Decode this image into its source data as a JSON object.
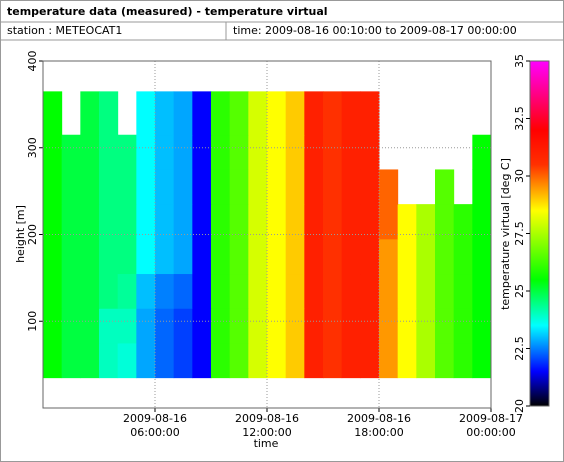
{
  "header": {
    "title": "temperature data (measured) - temperature virtual",
    "station": "station : METEOCAT1",
    "time": "time: 2009-08-16 00:10:00 to 2009-08-17 00:00:00"
  },
  "chart_data": {
    "type": "heatmap",
    "x_label": "time",
    "y_label": "height [m]",
    "colorbar_label": "temperature virtual [deg C]",
    "x_bins": [
      "2009-08-16 00:00:00",
      "2009-08-16 01:00:00",
      "2009-08-16 02:00:00",
      "2009-08-16 03:00:00",
      "2009-08-16 04:00:00",
      "2009-08-16 05:00:00",
      "2009-08-16 06:00:00",
      "2009-08-16 07:00:00",
      "2009-08-16 08:00:00",
      "2009-08-16 09:00:00",
      "2009-08-16 10:00:00",
      "2009-08-16 11:00:00",
      "2009-08-16 12:00:00",
      "2009-08-16 13:00:00",
      "2009-08-16 14:00:00",
      "2009-08-16 15:00:00",
      "2009-08-16 16:00:00",
      "2009-08-16 17:00:00",
      "2009-08-16 18:00:00",
      "2009-08-16 19:00:00",
      "2009-08-16 20:00:00",
      "2009-08-16 21:00:00",
      "2009-08-16 22:00:00",
      "2009-08-16 23:00:00",
      "2009-08-17 00:00:00"
    ],
    "y_bins": [
      35,
      75,
      115,
      155,
      195,
      235,
      275,
      315,
      365
    ],
    "values": [
      [
        25.5,
        25,
        25,
        24,
        23.8,
        22.8,
        22.3,
        22,
        21.5,
        26,
        26.5,
        28,
        28.5,
        29,
        31,
        30.5,
        31,
        31,
        29.5,
        28.5,
        27.5,
        26.5,
        26,
        25.5
      ],
      [
        25.5,
        25,
        25,
        24,
        24,
        22.8,
        22.3,
        22,
        21.5,
        26,
        26.5,
        28,
        28.5,
        29,
        31,
        30.5,
        31,
        31,
        29.5,
        28.5,
        27.5,
        26.5,
        26,
        25.5
      ],
      [
        25.5,
        25,
        25,
        24.5,
        24.3,
        23,
        22.5,
        22.3,
        21.5,
        26,
        26.5,
        28,
        28.5,
        29,
        31,
        30.5,
        31,
        31,
        29.5,
        28.5,
        27.5,
        26.5,
        26,
        25.5
      ],
      [
        25.5,
        25,
        25,
        24.5,
        24.5,
        23.5,
        23,
        22.8,
        21.5,
        26,
        26.5,
        28,
        28.5,
        29,
        31,
        30.5,
        31,
        31,
        29.5,
        28.5,
        27.5,
        26.5,
        26,
        25.5
      ],
      [
        25.5,
        25,
        25,
        24.5,
        24.5,
        23.5,
        23,
        22.8,
        21.5,
        26,
        26.5,
        28,
        28.5,
        29,
        31,
        30.5,
        31,
        31,
        30,
        28.5,
        27.5,
        26.5,
        26,
        25.5
      ],
      [
        25.5,
        25,
        25,
        24.5,
        24.5,
        23.5,
        23,
        22.8,
        21.5,
        26,
        26.5,
        28,
        28.5,
        29,
        31,
        30.5,
        31,
        31,
        30,
        null,
        null,
        26.5,
        null,
        25.5
      ],
      [
        25.5,
        25,
        25,
        24.5,
        24.5,
        23.5,
        23,
        22.8,
        21.5,
        26,
        26.5,
        28,
        28.5,
        29,
        31,
        30.5,
        31,
        31,
        null,
        null,
        null,
        null,
        null,
        25.5
      ],
      [
        25.5,
        null,
        25,
        24.5,
        null,
        23.5,
        23,
        22.8,
        21.5,
        26,
        26.5,
        28,
        28.5,
        29,
        31,
        30.5,
        31,
        31,
        null,
        null,
        null,
        null,
        null,
        null
      ]
    ],
    "xlim": [
      "2009-08-16 00:00:00",
      "2009-08-17 00:00:00"
    ],
    "xticks": [
      {
        "value": "2009-08-16 06:00:00",
        "label": [
          "2009-08-16",
          "06:00:00"
        ]
      },
      {
        "value": "2009-08-16 12:00:00",
        "label": [
          "2009-08-16",
          "12:00:00"
        ]
      },
      {
        "value": "2009-08-16 18:00:00",
        "label": [
          "2009-08-16",
          "18:00:00"
        ]
      },
      {
        "value": "2009-08-17 00:00:00",
        "label": [
          "2009-08-17",
          "00:00:00"
        ]
      }
    ],
    "ylim": [
      0,
      400
    ],
    "yticks": [
      100,
      200,
      300,
      400
    ],
    "clim": [
      20,
      35
    ],
    "cticks": [
      20,
      22.5,
      25,
      27.5,
      30,
      32.5,
      35
    ],
    "colormap": {
      "values": [
        20,
        21.5,
        23.5,
        25.5,
        28.5,
        30.5,
        32,
        35
      ],
      "colors": [
        "#000000",
        "#0000ff",
        "#00ffff",
        "#00ff00",
        "#ffff00",
        "#ff3000",
        "#ff0000",
        "#ff00ff"
      ]
    },
    "grid": true
  }
}
